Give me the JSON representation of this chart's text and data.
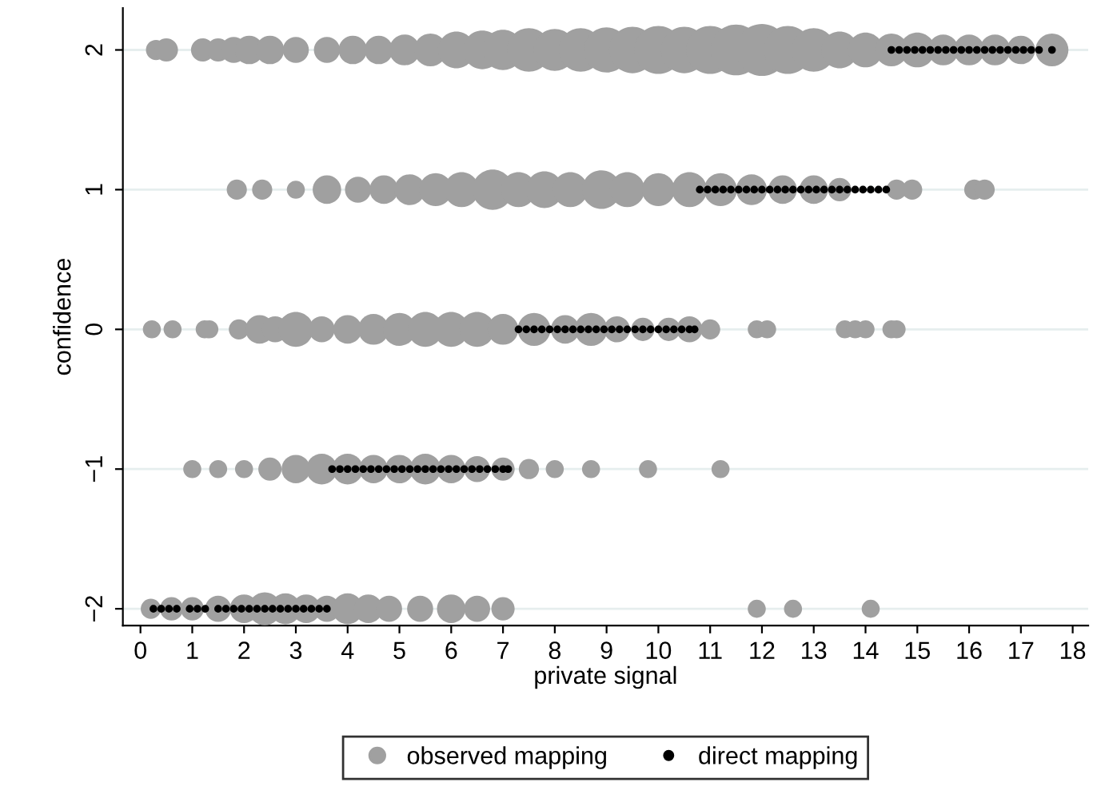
{
  "chart_data": {
    "type": "bubble",
    "xlabel": "private signal",
    "ylabel": "confidence",
    "xlim": [
      -0.34,
      18.3
    ],
    "ylim": [
      -2.12,
      2.3
    ],
    "xticks": [
      0,
      1,
      2,
      3,
      4,
      5,
      6,
      7,
      8,
      9,
      10,
      11,
      12,
      13,
      14,
      15,
      16,
      17,
      18
    ],
    "yticks": [
      {
        "value": -2,
        "label": "−2"
      },
      {
        "value": -1,
        "label": "−1"
      },
      0,
      1,
      2
    ],
    "grid": "y",
    "legend": "bottom",
    "marker": "circle",
    "series": [
      {
        "name": "observed mapping",
        "color": "#a0a0a0",
        "x": [
          0.3,
          0.5,
          1.2,
          1.5,
          1.8,
          2.1,
          2.5,
          3.0,
          3.6,
          4.1,
          4.6,
          5.1,
          5.6,
          6.1,
          6.6,
          7.0,
          7.5,
          8.0,
          8.5,
          9.0,
          9.5,
          10.0,
          10.5,
          11.0,
          11.5,
          12.0,
          12.5,
          13.0,
          13.5,
          14.0,
          14.5,
          15.0,
          15.5,
          16.0,
          16.5,
          17.0,
          17.6,
          1.86,
          2.35,
          3.0,
          3.6,
          4.2,
          4.7,
          5.2,
          5.7,
          6.2,
          6.8,
          7.3,
          7.8,
          8.3,
          8.9,
          9.4,
          10.0,
          10.6,
          11.2,
          11.8,
          12.4,
          13.0,
          13.5,
          14.6,
          14.9,
          16.1,
          16.3,
          0.22,
          0.62,
          1.24,
          1.33,
          1.9,
          2.3,
          2.6,
          3.0,
          3.5,
          4.0,
          4.5,
          5.0,
          5.5,
          6.0,
          6.5,
          7.0,
          7.6,
          8.2,
          8.7,
          9.2,
          9.7,
          10.2,
          10.6,
          11.0,
          11.9,
          12.1,
          13.6,
          13.8,
          14.0,
          14.5,
          14.6,
          1.0,
          1.5,
          2.0,
          2.5,
          3.0,
          3.5,
          4.0,
          4.5,
          5.0,
          5.5,
          6.0,
          6.5,
          7.0,
          7.5,
          8.0,
          8.7,
          9.8,
          11.2,
          0.2,
          0.6,
          1.0,
          1.5,
          2.0,
          2.4,
          2.8,
          3.2,
          3.6,
          4.0,
          4.4,
          4.8,
          5.4,
          6.0,
          6.5,
          7.0,
          11.9,
          12.6,
          14.1
        ],
        "values": [
          2,
          2,
          2,
          2,
          2,
          2,
          2,
          2,
          2,
          2,
          2,
          2,
          2,
          2,
          2,
          2,
          2,
          2,
          2,
          2,
          2,
          2,
          2,
          2,
          2,
          2,
          2,
          2,
          2,
          2,
          2,
          2,
          2,
          2,
          2,
          2,
          2,
          1,
          1,
          1,
          1,
          1,
          1,
          1,
          1,
          1,
          1,
          1,
          1,
          1,
          1,
          1,
          1,
          1,
          1,
          1,
          1,
          1,
          1,
          1,
          1,
          1,
          1,
          0,
          0,
          0,
          0,
          0,
          0,
          0,
          0,
          0,
          0,
          0,
          0,
          0,
          0,
          0,
          0,
          0,
          0,
          0,
          0,
          0,
          0,
          0,
          0,
          0,
          0,
          0,
          0,
          0,
          0,
          0,
          -1,
          -1,
          -1,
          -1,
          -1,
          -1,
          -1,
          -1,
          -1,
          -1,
          -1,
          -1,
          -1,
          -1,
          -1,
          -1,
          -1,
          -1,
          -2,
          -2,
          -2,
          -2,
          -2,
          -2,
          -2,
          -2,
          -2,
          -2,
          -2,
          -2,
          -2,
          -2,
          -2,
          -2,
          -2,
          -2,
          -2
        ],
        "sizes": [
          0.15,
          0.2,
          0.2,
          0.2,
          0.25,
          0.3,
          0.3,
          0.25,
          0.25,
          0.3,
          0.3,
          0.35,
          0.4,
          0.5,
          0.55,
          0.6,
          0.7,
          0.65,
          0.7,
          0.75,
          0.8,
          0.85,
          0.8,
          0.85,
          0.95,
          1.0,
          0.85,
          0.7,
          0.5,
          0.45,
          0.4,
          0.45,
          0.35,
          0.35,
          0.35,
          0.3,
          0.4,
          0.15,
          0.15,
          0.12,
          0.3,
          0.25,
          0.3,
          0.35,
          0.4,
          0.45,
          0.6,
          0.45,
          0.5,
          0.45,
          0.55,
          0.45,
          0.4,
          0.45,
          0.4,
          0.35,
          0.3,
          0.3,
          0.2,
          0.15,
          0.15,
          0.15,
          0.15,
          0.12,
          0.12,
          0.12,
          0.12,
          0.15,
          0.3,
          0.25,
          0.45,
          0.25,
          0.3,
          0.35,
          0.4,
          0.45,
          0.45,
          0.45,
          0.35,
          0.4,
          0.3,
          0.4,
          0.25,
          0.2,
          0.2,
          0.25,
          0.15,
          0.12,
          0.12,
          0.12,
          0.12,
          0.12,
          0.12,
          0.12,
          0.12,
          0.12,
          0.12,
          0.2,
          0.3,
          0.35,
          0.35,
          0.3,
          0.3,
          0.35,
          0.3,
          0.25,
          0.2,
          0.15,
          0.12,
          0.12,
          0.12,
          0.12,
          0.15,
          0.2,
          0.2,
          0.25,
          0.3,
          0.4,
          0.35,
          0.3,
          0.25,
          0.35,
          0.3,
          0.25,
          0.25,
          0.3,
          0.25,
          0.2,
          0.12,
          0.12,
          0.12
        ]
      },
      {
        "name": "direct mapping",
        "type": "scatter",
        "color": "#000000",
        "x": [
          14.5,
          14.65,
          14.8,
          14.95,
          15.1,
          15.25,
          15.4,
          15.55,
          15.7,
          15.85,
          16.0,
          16.15,
          16.3,
          16.45,
          16.6,
          16.75,
          16.9,
          17.05,
          17.2,
          17.35,
          17.6,
          10.8,
          10.95,
          11.1,
          11.25,
          11.4,
          11.55,
          11.7,
          11.85,
          12.0,
          12.15,
          12.3,
          12.45,
          12.6,
          12.75,
          12.9,
          13.05,
          13.2,
          13.35,
          13.5,
          13.65,
          13.8,
          13.95,
          14.1,
          14.25,
          14.4,
          7.3,
          7.45,
          7.6,
          7.75,
          7.9,
          8.05,
          8.2,
          8.35,
          8.5,
          8.65,
          8.8,
          8.95,
          9.1,
          9.25,
          9.4,
          9.55,
          9.7,
          9.85,
          10.0,
          10.15,
          10.3,
          10.45,
          10.6,
          10.7,
          3.7,
          3.85,
          4.0,
          4.15,
          4.3,
          4.45,
          4.6,
          4.75,
          4.9,
          5.05,
          5.2,
          5.35,
          5.5,
          5.65,
          5.8,
          5.95,
          6.1,
          6.25,
          6.4,
          6.55,
          6.7,
          6.85,
          7.0,
          7.1,
          0.25,
          0.4,
          0.55,
          0.7,
          0.95,
          1.1,
          1.25,
          1.5,
          1.65,
          1.8,
          1.95,
          2.1,
          2.25,
          2.4,
          2.55,
          2.7,
          2.85,
          3.0,
          3.15,
          3.3,
          3.45,
          3.6
        ],
        "values": [
          2,
          2,
          2,
          2,
          2,
          2,
          2,
          2,
          2,
          2,
          2,
          2,
          2,
          2,
          2,
          2,
          2,
          2,
          2,
          2,
          2,
          1,
          1,
          1,
          1,
          1,
          1,
          1,
          1,
          1,
          1,
          1,
          1,
          1,
          1,
          1,
          1,
          1,
          1,
          1,
          1,
          1,
          1,
          1,
          1,
          1,
          0,
          0,
          0,
          0,
          0,
          0,
          0,
          0,
          0,
          0,
          0,
          0,
          0,
          0,
          0,
          0,
          0,
          0,
          0,
          0,
          0,
          0,
          0,
          0,
          -1,
          -1,
          -1,
          -1,
          -1,
          -1,
          -1,
          -1,
          -1,
          -1,
          -1,
          -1,
          -1,
          -1,
          -1,
          -1,
          -1,
          -1,
          -1,
          -1,
          -1,
          -1,
          -1,
          -1,
          -2,
          -2,
          -2,
          -2,
          -2,
          -2,
          -2,
          -2,
          -2,
          -2,
          -2,
          -2,
          -2,
          -2,
          -2,
          -2,
          -2,
          -2,
          -2,
          -2,
          -2,
          -2
        ]
      }
    ]
  }
}
